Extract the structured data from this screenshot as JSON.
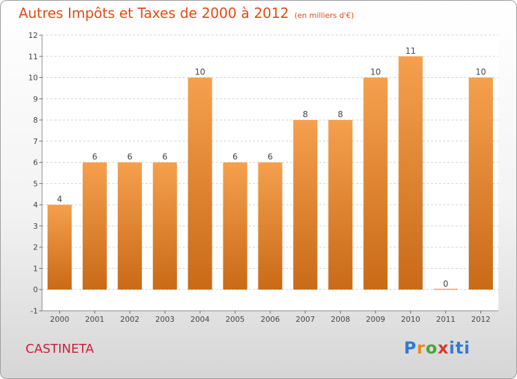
{
  "header": {
    "title": "Autres Impôts et Taxes de 2000 à 2012",
    "unit": "(en milliers d'€)"
  },
  "footer": {
    "commune": "CASTINETA",
    "logo": "Proxiti"
  },
  "colors": {
    "bar_top": "#f5a04e",
    "bar_bottom": "#c96a17",
    "title": "#e24a17",
    "commune": "#c61f3b"
  },
  "chart_data": {
    "type": "bar",
    "title": "Autres Impôts et Taxes de 2000 à 2012",
    "subtitle": "(en milliers d'€)",
    "categories": [
      "2000",
      "2001",
      "2002",
      "2003",
      "2004",
      "2005",
      "2006",
      "2007",
      "2008",
      "2009",
      "2010",
      "2011",
      "2012"
    ],
    "values": [
      4,
      6,
      6,
      6,
      10,
      6,
      6,
      8,
      8,
      10,
      11,
      0,
      10
    ],
    "ylim": [
      -1,
      12
    ],
    "yticks": [
      -1,
      0,
      1,
      2,
      3,
      4,
      5,
      6,
      7,
      8,
      9,
      10,
      11,
      12
    ],
    "grid": true,
    "legend": "none"
  }
}
